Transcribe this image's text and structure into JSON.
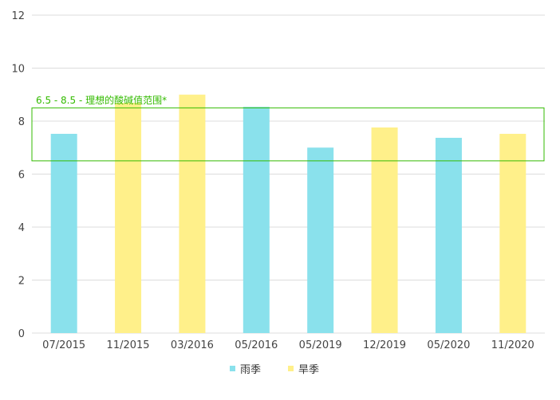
{
  "chart_data": {
    "type": "bar",
    "categories": [
      "07/2015",
      "11/2015",
      "03/2016",
      "05/2016",
      "05/2019",
      "12/2019",
      "05/2020",
      "11/2020"
    ],
    "values": [
      7.52,
      8.69,
      9.0,
      8.54,
      7.0,
      7.76,
      7.37,
      7.52
    ],
    "season": [
      "rain",
      "dry",
      "dry",
      "rain",
      "rain",
      "dry",
      "rain",
      "dry"
    ],
    "legend": [
      {
        "name": "雨季",
        "key": "rain",
        "color": "#8ae1ec"
      },
      {
        "name": "旱季",
        "key": "dry",
        "color": "#fff08a"
      }
    ],
    "legend_position": "bottom",
    "ylim": [
      0,
      12
    ],
    "yticks": [
      0,
      2,
      4,
      6,
      8,
      10,
      12
    ],
    "grid": true,
    "annotation": {
      "label": "6.5 - 8.5 - 理想的酸碱值范围*",
      "range": [
        6.5,
        8.5
      ],
      "color": "#33bb00"
    }
  }
}
